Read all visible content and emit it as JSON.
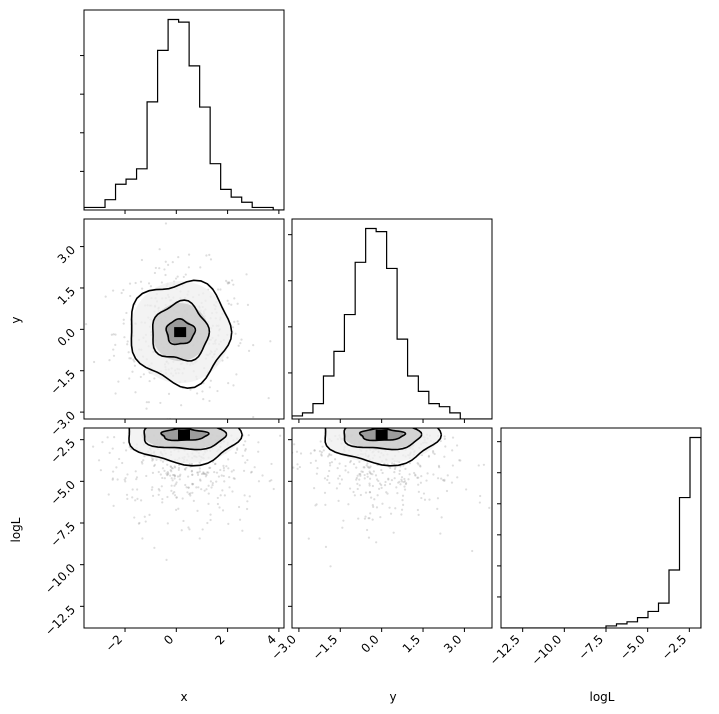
{
  "chart_data": {
    "type": "corner",
    "parameters": [
      "x",
      "y",
      "logL"
    ],
    "axes": {
      "x": {
        "label": "x",
        "range": [
          -3.6,
          4.2
        ],
        "ticks": [
          -2,
          0,
          2,
          4
        ],
        "tick_labels": [
          "−2",
          "0",
          "2",
          "4"
        ]
      },
      "y": {
        "label": "y",
        "range": [
          -3.25,
          4.0
        ],
        "ticks": [
          -3.0,
          -1.5,
          0.0,
          1.5,
          3.0
        ],
        "tick_labels": [
          "−3.0",
          "−1.5",
          "0.0",
          "1.5",
          "3.0"
        ]
      },
      "logL": {
        "label": "logL",
        "range": [
          -13.8,
          -1.8
        ],
        "ticks": [
          -12.5,
          -10.0,
          -7.5,
          -5.0,
          -2.5
        ],
        "tick_labels": [
          "−12.5",
          "−10.0",
          "−7.5",
          "−5.0",
          "−2.5"
        ]
      }
    },
    "histograms": {
      "x": {
        "bin_edges": [
          -3.6,
          -3.19,
          -2.78,
          -2.37,
          -1.96,
          -1.55,
          -1.14,
          -0.73,
          -0.32,
          0.09,
          0.5,
          0.91,
          1.32,
          1.73,
          2.14,
          2.55,
          2.96,
          3.37,
          3.78,
          4.2
        ],
        "counts": [
          1,
          1,
          4,
          10,
          12,
          16,
          42,
          62,
          74,
          73,
          56,
          40,
          18,
          8,
          5,
          3,
          1,
          1,
          0
        ]
      },
      "y": {
        "bin_edges": [
          -3.25,
          -2.87,
          -2.49,
          -2.11,
          -1.73,
          -1.35,
          -0.96,
          -0.58,
          -0.2,
          0.18,
          0.56,
          0.94,
          1.33,
          1.71,
          2.09,
          2.47,
          2.85,
          3.23,
          3.61,
          4.0
        ],
        "counts": [
          1,
          2,
          5,
          14,
          22,
          34,
          51,
          62,
          61,
          49,
          26,
          14,
          9,
          5,
          4,
          2,
          0,
          0,
          0
        ]
      },
      "logL": {
        "bin_edges": [
          -13.8,
          -13.17,
          -12.54,
          -11.91,
          -11.28,
          -10.65,
          -10.02,
          -9.39,
          -8.76,
          -8.13,
          -7.5,
          -6.87,
          -6.24,
          -5.61,
          -4.98,
          -4.35,
          -3.72,
          -3.09,
          -2.46,
          -1.8
        ],
        "counts": [
          0,
          0,
          0,
          0,
          0,
          0,
          0,
          0,
          0,
          0,
          1,
          2,
          3,
          5,
          8,
          12,
          28,
          63,
          92
        ]
      }
    },
    "pairs": [
      {
        "x": "x",
        "y": "y",
        "center": [
          0.15,
          -0.1
        ],
        "contours": [
          {
            "level": 0.39,
            "rx": 0.55,
            "ry": 0.45
          },
          {
            "level": 0.86,
            "rx": 1.1,
            "ry": 1.05
          },
          {
            "level": 0.99,
            "rx": 1.95,
            "ry": 1.85
          }
        ]
      },
      {
        "x": "x",
        "y": "logL",
        "center": [
          0.3,
          -2.2
        ],
        "contours": [
          {
            "level": 0.39,
            "rx": 0.9,
            "ry": 0.35
          },
          {
            "level": 0.86,
            "rx": 1.6,
            "ry": 0.9
          },
          {
            "level": 0.99,
            "rx": 2.2,
            "ry": 1.7
          }
        ]
      },
      {
        "x": "y",
        "y": "logL",
        "center": [
          0.0,
          -2.2
        ],
        "contours": [
          {
            "level": 0.39,
            "rx": 0.8,
            "ry": 0.35
          },
          {
            "level": 0.86,
            "rx": 1.4,
            "ry": 0.9
          },
          {
            "level": 0.99,
            "rx": 2.1,
            "ry": 1.7
          }
        ]
      }
    ],
    "grid": false,
    "legend": "none"
  }
}
